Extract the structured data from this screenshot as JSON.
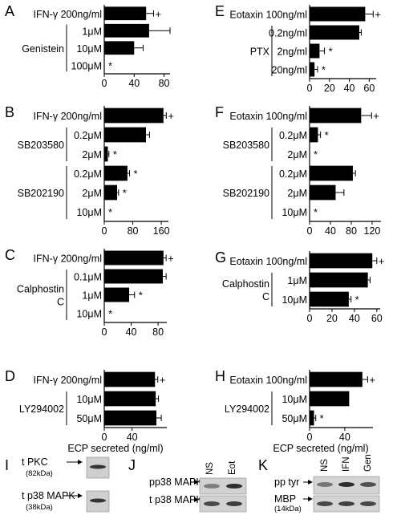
{
  "figure": {
    "common_xlabel": "ECP secreted (ng/ml)"
  },
  "chart_data": [
    {
      "panel": "A",
      "type": "bar",
      "orientation": "horizontal",
      "categories": [
        "IFN-γ 200ng/ml",
        "1μM",
        "10μM",
        "100μM"
      ],
      "group_label": [
        "Genistein"
      ],
      "values": [
        56,
        60,
        40,
        0
      ],
      "errors": [
        10,
        28,
        12,
        0
      ],
      "marks": [
        "+",
        "",
        "",
        "*"
      ],
      "xticks": [
        0,
        40,
        80
      ],
      "xlim": [
        0,
        88
      ],
      "xlabel": ""
    },
    {
      "panel": "B",
      "type": "bar",
      "orientation": "horizontal",
      "categories": [
        "IFN-γ 200ng/ml",
        "0.2μM",
        "2μM",
        "0.2μM",
        "2μM",
        "10μM"
      ],
      "group_labels": [
        [
          "SB203580"
        ],
        [
          "SB202190"
        ]
      ],
      "values": [
        166,
        117,
        10,
        65,
        36,
        0
      ],
      "errors": [
        8,
        10,
        3,
        6,
        4,
        0
      ],
      "marks": [
        "+",
        "",
        "*",
        "*",
        "*",
        "*"
      ],
      "xticks": [
        0,
        80,
        160
      ],
      "xlim": [
        0,
        180
      ],
      "xlabel": ""
    },
    {
      "panel": "C",
      "type": "bar",
      "orientation": "horizontal",
      "categories": [
        "IFN-γ 200ng/ml",
        "0.1μM",
        "1μM",
        "10μM"
      ],
      "group_label": [
        "Calphostin",
        "C"
      ],
      "values": [
        88,
        87,
        37,
        0
      ],
      "errors": [
        4,
        5,
        8,
        0
      ],
      "marks": [
        "+",
        "",
        "*",
        "*"
      ],
      "xticks": [
        0,
        40,
        80
      ],
      "xlim": [
        0,
        93
      ],
      "xlabel": ""
    },
    {
      "panel": "D",
      "type": "bar",
      "orientation": "horizontal",
      "categories": [
        "IFN-γ 200ng/ml",
        "10μM",
        "50μM"
      ],
      "group_label": [
        "LY294002"
      ],
      "values": [
        73,
        74,
        75
      ],
      "errors": [
        4,
        4,
        7
      ],
      "marks": [
        "+",
        "",
        ""
      ],
      "xticks": [
        0,
        40
      ],
      "xlim": [
        0,
        90
      ],
      "xlabel": "ECP secreted (ng/ml)"
    },
    {
      "panel": "E",
      "type": "bar",
      "orientation": "horizontal",
      "categories": [
        "Eotaxin 100ng/ml",
        "0.2ng/ml",
        "2ng/ml",
        "20ng/ml"
      ],
      "group_label": [
        "PTX"
      ],
      "values": [
        56,
        50,
        10,
        5
      ],
      "errors": [
        8,
        2,
        5,
        3
      ],
      "marks": [
        "+",
        "",
        "*",
        "*"
      ],
      "xticks": [
        0,
        20,
        40,
        60
      ],
      "xlim": [
        0,
        67
      ],
      "xlabel": ""
    },
    {
      "panel": "F",
      "type": "bar",
      "orientation": "horizontal",
      "categories": [
        "Eotaxin 100ng/ml",
        "0.2μM",
        "2μM",
        "0.2μM",
        "2μM",
        "10μM"
      ],
      "group_labels": [
        [
          "SB203580"
        ],
        [
          "SB202190"
        ]
      ],
      "values": [
        99,
        16,
        0,
        83,
        50,
        0
      ],
      "errors": [
        20,
        5,
        0,
        5,
        16,
        0
      ],
      "marks": [
        "+",
        "*",
        "*",
        "",
        "",
        "*"
      ],
      "xticks": [
        0,
        40,
        80,
        120
      ],
      "xlim": [
        0,
        137
      ],
      "xlabel": ""
    },
    {
      "panel": "G",
      "type": "bar",
      "orientation": "horizontal",
      "categories": [
        "Eotaxin 100ng/ml",
        "1μM",
        "10μM"
      ],
      "group_label": [
        "Calphostin",
        "C"
      ],
      "values": [
        56,
        52,
        35
      ],
      "errors": [
        4,
        2,
        2
      ],
      "marks": [
        "+",
        "",
        "*"
      ],
      "xticks": [
        0,
        20,
        40,
        60
      ],
      "xlim": [
        0,
        63
      ],
      "xlabel": ""
    },
    {
      "panel": "H",
      "type": "bar",
      "orientation": "horizontal",
      "categories": [
        "Eotaxin 100ng/ml",
        "10μM",
        "50μM"
      ],
      "group_label": [
        "LY294002"
      ],
      "values": [
        60,
        45,
        5
      ],
      "errors": [
        6,
        0,
        2
      ],
      "marks": [
        "+",
        "",
        "*"
      ],
      "xticks": [
        0,
        40
      ],
      "xlim": [
        0,
        72
      ],
      "xlabel": "ECP secreted (ng/ml)"
    }
  ],
  "blots": {
    "I": {
      "letter": "I",
      "rows": [
        {
          "label": "t PKC",
          "sublabel": "(82kDa)"
        },
        {
          "label": "t p38 MAPK",
          "sublabel": "(38kDa)"
        }
      ]
    },
    "J": {
      "letter": "J",
      "columns": [
        "NS",
        "Eot"
      ],
      "rows": [
        {
          "label": "pp38 MAPK",
          "sublabel": ""
        },
        {
          "label": "t p38 MAPK",
          "sublabel": ""
        }
      ]
    },
    "K": {
      "letter": "K",
      "columns": [
        "NS",
        "IFN",
        "Gen"
      ],
      "rows": [
        {
          "label": "pp tyr",
          "sublabel": ""
        },
        {
          "label": "MBP",
          "sublabel": "(14kDa)"
        }
      ]
    }
  }
}
